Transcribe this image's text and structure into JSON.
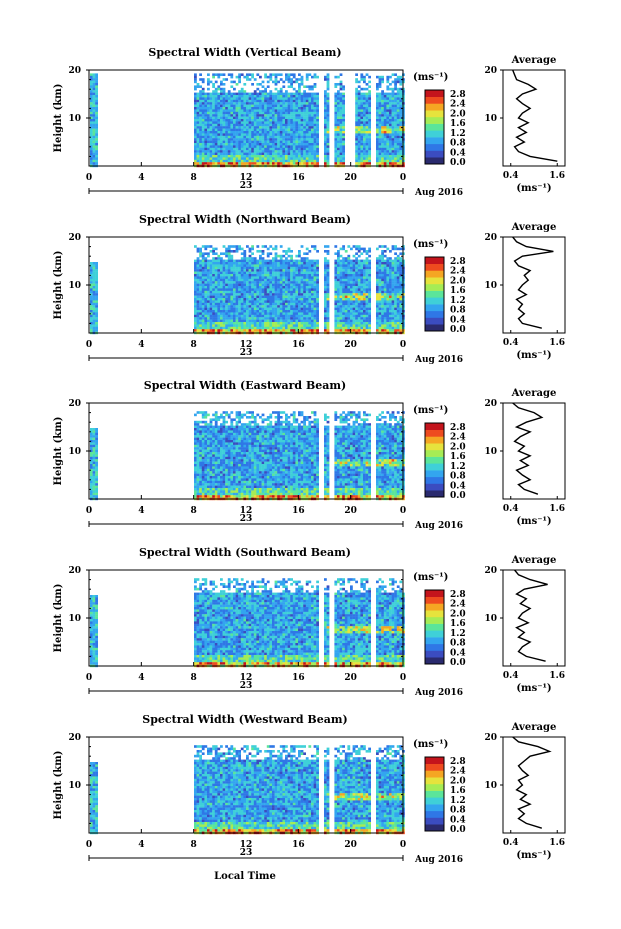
{
  "figure": {
    "xlabel": "Local Time",
    "date_label": "Aug 2016",
    "day_label": "23",
    "colorbar_unit": "(ms⁻¹)",
    "colorbar_ticks": [
      "0.0",
      "0.4",
      "0.8",
      "1.2",
      "1.6",
      "2.0",
      "2.4",
      "2.8"
    ],
    "avg_title": "Average",
    "avg_xlabel": "(ms⁻¹)",
    "avg_xticks": [
      "0.4",
      "1.6"
    ],
    "x_ticks": [
      "0",
      "4",
      "8",
      "16",
      "20",
      "0"
    ],
    "x_tick_hours": [
      0,
      4,
      8,
      16,
      20,
      24
    ],
    "center_tick_label": "12",
    "y_label": "Height (km)",
    "y_ticks": [
      "20",
      "10"
    ],
    "colormap": [
      "#2a2a6e",
      "#3b4cc0",
      "#2f77e6",
      "#33a5ef",
      "#3fd0d8",
      "#5be59a",
      "#a6ec55",
      "#e6e33d",
      "#f5a623",
      "#ee4b1f",
      "#c4141c"
    ]
  },
  "chart_data": [
    {
      "type": "heatmap",
      "title": "Spectral Width (Vertical Beam)",
      "x_range_hours": [
        0,
        24
      ],
      "y_range_km": [
        0,
        20
      ],
      "value_range": [
        0,
        3.0
      ],
      "gaps_hours": [
        [
          0.5,
          8
        ],
        [
          17.5,
          17.8
        ],
        [
          18.3,
          18.7
        ],
        [
          19.5,
          20.2
        ],
        [
          21.5,
          21.9
        ]
      ],
      "average_profile": {
        "height_km": [
          1,
          2,
          3,
          4,
          5,
          6,
          7,
          8,
          9,
          10,
          11,
          12,
          13,
          14,
          15,
          16,
          17,
          18,
          19,
          20
        ],
        "width_ms": [
          1.6,
          0.9,
          0.6,
          0.5,
          0.75,
          0.55,
          0.8,
          0.6,
          0.85,
          0.6,
          0.7,
          0.9,
          0.7,
          0.55,
          0.7,
          1.05,
          0.85,
          0.55,
          0.5,
          0.45
        ]
      }
    },
    {
      "type": "heatmap",
      "title": "Spectral Width (Northward Beam)",
      "x_range_hours": [
        0,
        24
      ],
      "y_range_km": [
        0,
        20
      ],
      "value_range": [
        0,
        3.0
      ],
      "gaps_hours": [
        [
          0.5,
          8
        ],
        [
          17.5,
          17.8
        ],
        [
          18.3,
          18.7
        ],
        [
          21.5,
          21.9
        ]
      ],
      "average_profile": {
        "height_km": [
          1,
          2,
          3,
          4,
          5,
          6,
          7,
          8,
          9,
          10,
          11,
          12,
          13,
          14,
          15,
          16,
          17,
          18,
          19,
          20
        ],
        "width_ms": [
          1.2,
          0.7,
          0.6,
          0.75,
          0.6,
          0.7,
          0.55,
          0.8,
          0.6,
          0.7,
          0.85,
          0.75,
          0.9,
          0.6,
          0.5,
          0.7,
          1.5,
          0.8,
          0.55,
          0.45
        ]
      }
    },
    {
      "type": "heatmap",
      "title": "Spectral Width (Eastward Beam)",
      "x_range_hours": [
        0,
        24
      ],
      "y_range_km": [
        0,
        20
      ],
      "value_range": [
        0,
        3.0
      ],
      "gaps_hours": [
        [
          0.5,
          8
        ],
        [
          17.5,
          17.8
        ],
        [
          18.3,
          18.7
        ],
        [
          21.5,
          21.9
        ]
      ],
      "average_profile": {
        "height_km": [
          1,
          2,
          3,
          4,
          5,
          6,
          7,
          8,
          9,
          10,
          11,
          12,
          13,
          14,
          15,
          16,
          17,
          18,
          19,
          20
        ],
        "width_ms": [
          1.1,
          0.75,
          0.6,
          0.9,
          0.7,
          0.55,
          0.85,
          0.65,
          0.9,
          0.6,
          0.75,
          0.5,
          0.65,
          0.9,
          0.55,
          0.8,
          1.2,
          1.0,
          0.6,
          0.45
        ]
      }
    },
    {
      "type": "heatmap",
      "title": "Spectral Width (Southward Beam)",
      "x_range_hours": [
        0,
        24
      ],
      "y_range_km": [
        0,
        20
      ],
      "value_range": [
        0,
        3.0
      ],
      "gaps_hours": [
        [
          0.5,
          8
        ],
        [
          17.5,
          17.8
        ],
        [
          18.3,
          18.7
        ],
        [
          21.5,
          21.9
        ]
      ],
      "average_profile": {
        "height_km": [
          1,
          2,
          3,
          4,
          5,
          6,
          7,
          8,
          9,
          10,
          11,
          12,
          13,
          14,
          15,
          16,
          17,
          18,
          19,
          20
        ],
        "width_ms": [
          1.3,
          0.8,
          0.6,
          0.7,
          0.9,
          0.6,
          0.75,
          0.55,
          0.85,
          0.6,
          0.7,
          0.9,
          0.65,
          0.8,
          0.55,
          0.75,
          1.35,
          0.9,
          0.6,
          0.5
        ]
      }
    },
    {
      "type": "heatmap",
      "title": "Spectral Width (Westward Beam)",
      "x_range_hours": [
        0,
        24
      ],
      "y_range_km": [
        0,
        20
      ],
      "value_range": [
        0,
        3.0
      ],
      "gaps_hours": [
        [
          0.5,
          8
        ],
        [
          17.5,
          17.8
        ],
        [
          18.3,
          18.7
        ],
        [
          21.5,
          21.9
        ]
      ],
      "average_profile": {
        "height_km": [
          1,
          2,
          3,
          4,
          5,
          6,
          7,
          8,
          9,
          10,
          11,
          12,
          13,
          14,
          15,
          16,
          17,
          18,
          19,
          20
        ],
        "width_ms": [
          1.2,
          0.8,
          0.6,
          0.75,
          0.6,
          0.9,
          0.65,
          0.8,
          0.55,
          0.7,
          0.6,
          0.85,
          0.7,
          0.6,
          0.75,
          0.9,
          1.4,
          1.1,
          0.6,
          0.45
        ]
      }
    }
  ]
}
